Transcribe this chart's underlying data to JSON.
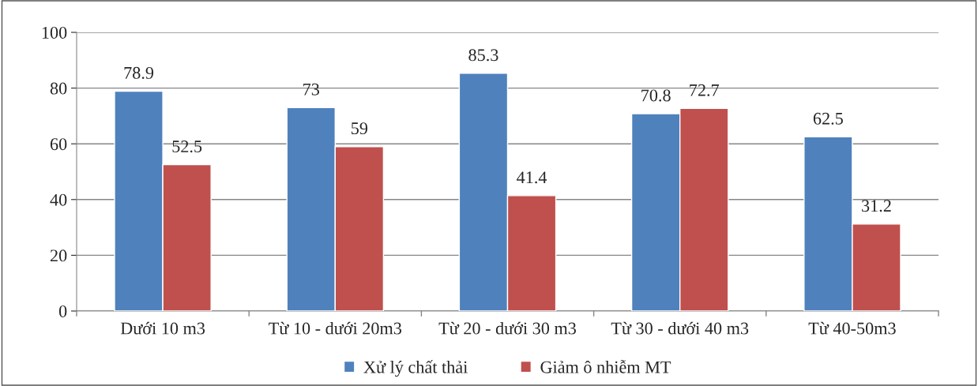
{
  "chart_data": {
    "type": "bar",
    "categories": [
      "Dưới 10 m3",
      "Từ 10 - dưới 20m3",
      "Từ 20 - dưới 30 m3",
      "Từ 30 - dưới 40 m3",
      "Từ 40-50m3"
    ],
    "series": [
      {
        "name": "Xử lý chất thải",
        "color": "#4f81bd",
        "values": [
          78.9,
          73,
          85.3,
          70.8,
          62.5
        ]
      },
      {
        "name": "Giảm ô nhiễm MT",
        "color": "#c0504d",
        "values": [
          52.5,
          59,
          41.4,
          72.7,
          31.2
        ]
      }
    ],
    "ylim": [
      0,
      100
    ],
    "yticks": [
      0,
      20,
      40,
      60,
      80,
      100
    ],
    "grid": "y",
    "legend": "bottom",
    "data_labels": true
  }
}
